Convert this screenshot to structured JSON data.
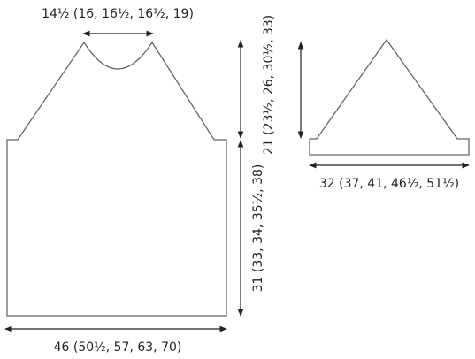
{
  "body": {
    "neck_width": "14½ (16, 16½, 16½, 19)",
    "armhole_depth": "21 (23½, 26, 30½, 33)",
    "side_length": "31 (33, 34, 35½, 38)",
    "width": "46 (50½, 57, 63, 70)"
  },
  "sleeve": {
    "width": "32 (37, 41, 46½, 51½)"
  }
}
